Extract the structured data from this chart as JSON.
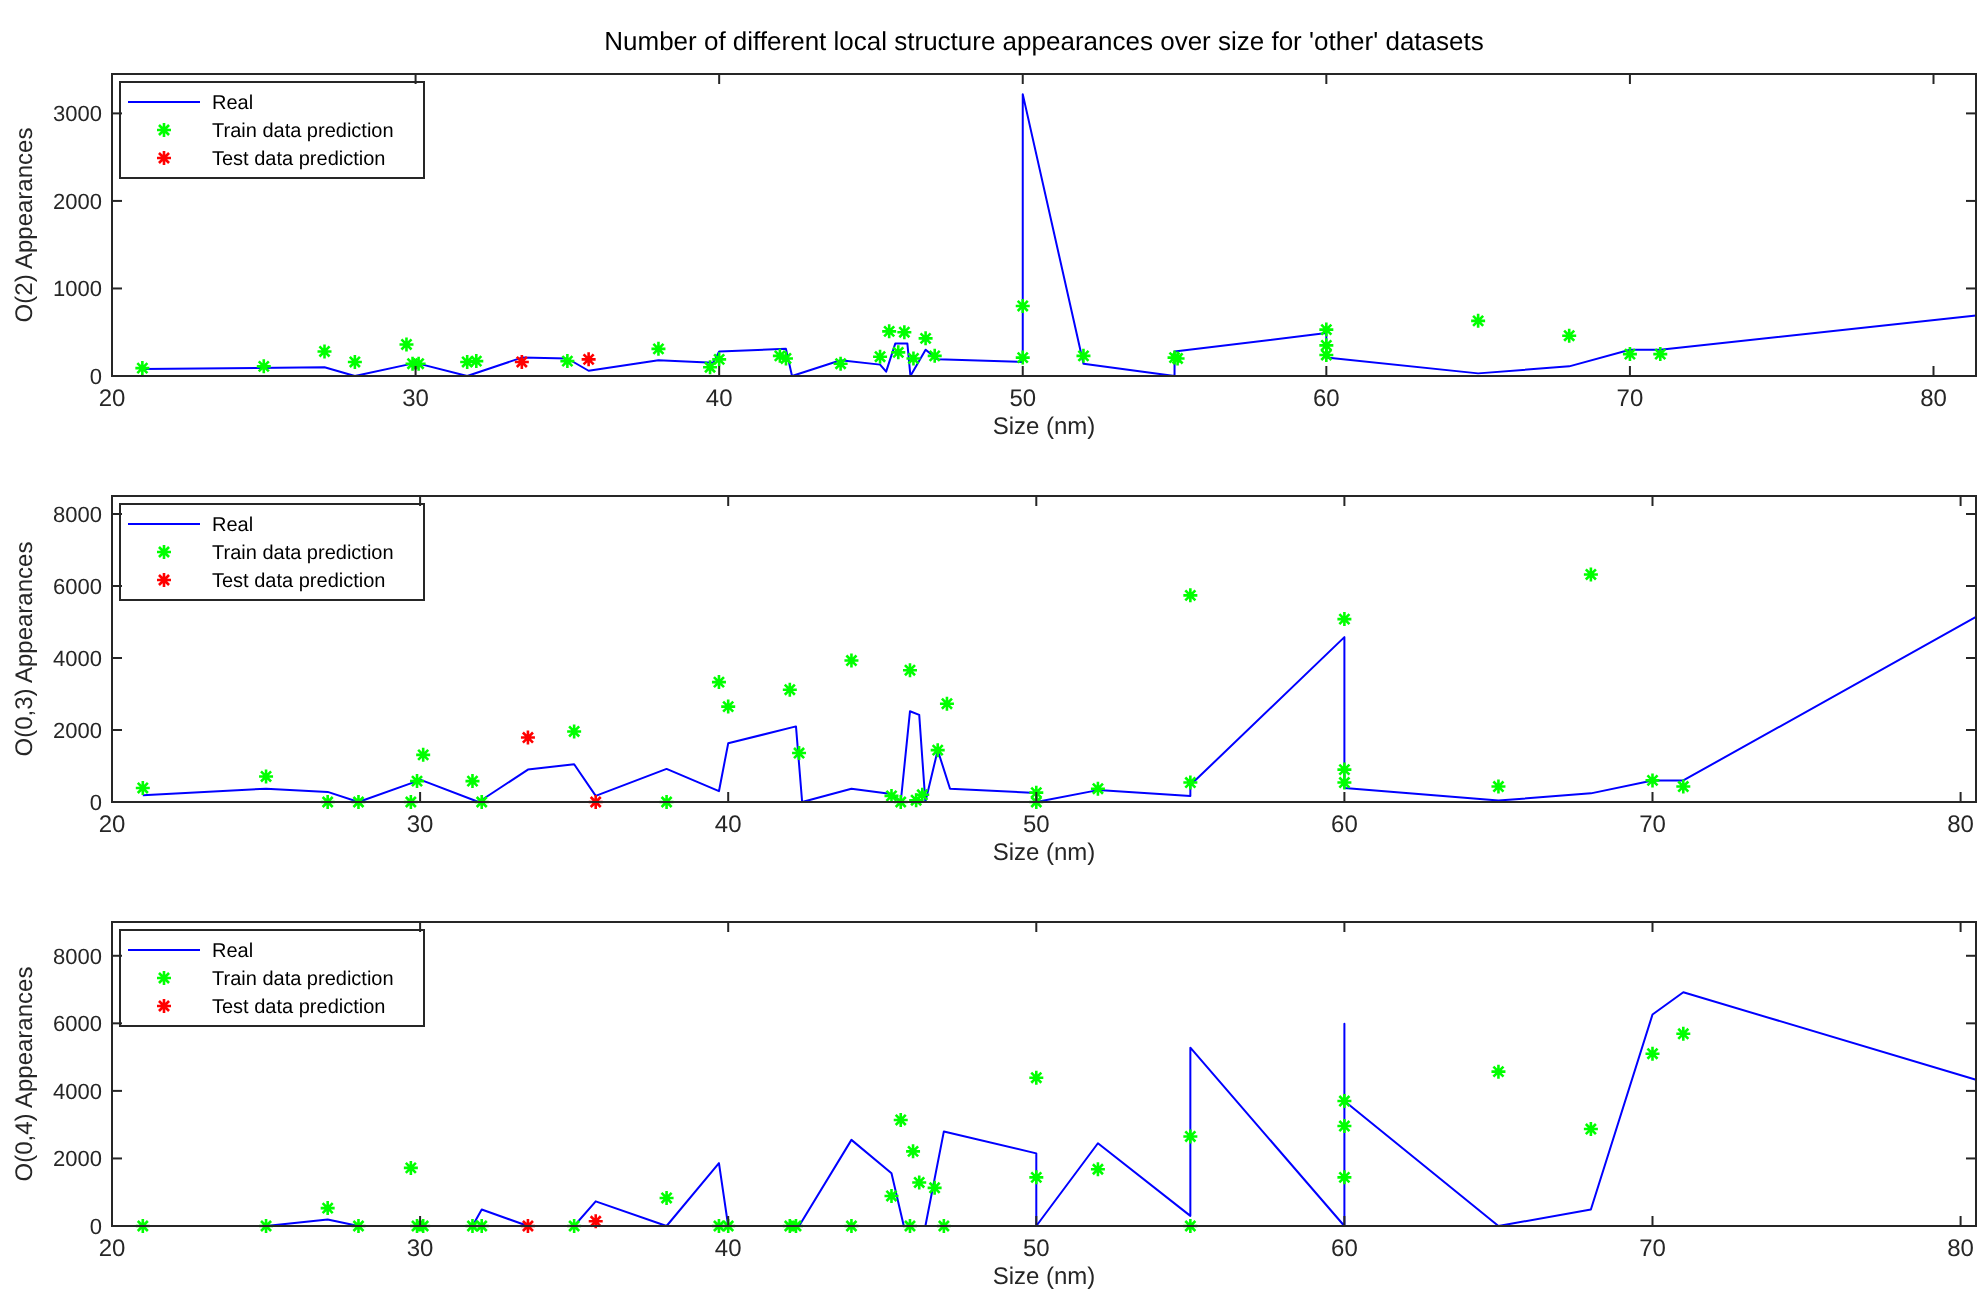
{
  "chart_data": [
    {
      "type": "line",
      "title": "Number of different local structure appearances over size for 'other' datasets",
      "xlabel": "Size (nm)",
      "ylabel": "O(2) Appearances",
      "xlim": [
        20,
        81.4
      ],
      "ylim": [
        0,
        3450
      ],
      "xticks": [
        20,
        30,
        40,
        50,
        60,
        70,
        80
      ],
      "yticks": [
        0,
        1000,
        2000,
        3000
      ],
      "legend": "top left",
      "series": [
        {
          "name": "Real",
          "color": "#0000ff",
          "marker": "none",
          "line_style": "solid",
          "x": [
            21,
            27,
            28,
            30,
            31.7,
            33.5,
            35,
            35.7,
            38,
            39.8,
            40,
            42.2,
            42.4,
            44,
            45.3,
            45.5,
            45.8,
            46.2,
            46.3,
            46.8,
            47.2,
            50,
            50,
            52,
            55,
            55,
            60,
            60,
            65,
            68,
            70,
            71,
            81.4
          ],
          "values": [
            80,
            100,
            0,
            150,
            0,
            210,
            200,
            60,
            180,
            150,
            280,
            310,
            0,
            180,
            130,
            50,
            370,
            370,
            0,
            300,
            190,
            160,
            3220,
            140,
            0,
            280,
            490,
            210,
            30,
            110,
            300,
            300,
            690
          ]
        },
        {
          "name": "Train data prediction",
          "type": "scatter",
          "color": "#00ff00",
          "marker": "cross",
          "x": [
            21,
            25,
            27,
            28,
            29.7,
            29.9,
            30.1,
            31.7,
            32,
            35,
            38,
            39.7,
            40,
            42,
            42.2,
            44,
            45.3,
            45.6,
            45.9,
            46.1,
            46.4,
            46.8,
            47.1,
            50,
            50,
            52,
            55,
            55.1,
            60,
            60,
            60,
            65,
            68,
            70,
            71
          ],
          "values": [
            90,
            110,
            280,
            160,
            360,
            140,
            140,
            160,
            170,
            170,
            310,
            100,
            190,
            230,
            200,
            140,
            220,
            510,
            270,
            500,
            200,
            430,
            230,
            800,
            210,
            230,
            210,
            200,
            530,
            350,
            240,
            630,
            460,
            250,
            250
          ]
        },
        {
          "name": "Test data prediction",
          "type": "scatter",
          "color": "#ff0000",
          "marker": "cross",
          "x": [
            33.5,
            35.7
          ],
          "values": [
            160,
            190
          ]
        }
      ]
    },
    {
      "type": "line",
      "xlabel": "Size (nm)",
      "ylabel": "O(0,3) Appearances",
      "xlim": [
        20,
        80.5
      ],
      "ylim": [
        0,
        8500
      ],
      "xticks": [
        20,
        30,
        40,
        50,
        60,
        70,
        80
      ],
      "yticks": [
        0,
        2000,
        4000,
        6000,
        8000
      ],
      "legend": "top left",
      "series": [
        {
          "name": "Real",
          "color": "#0000ff",
          "marker": "none",
          "line_style": "solid",
          "x": [
            21,
            25,
            27,
            28,
            29.9,
            30,
            31.9,
            33.5,
            35,
            35.7,
            38,
            39.7,
            40,
            42.2,
            42.4,
            44,
            45.3,
            45.6,
            45.9,
            46.2,
            46.4,
            46.8,
            47.2,
            50,
            50,
            52,
            55,
            55,
            60,
            60,
            65,
            68,
            70,
            71,
            80.5
          ],
          "values": [
            190,
            370,
            280,
            0,
            580,
            620,
            0,
            900,
            1050,
            170,
            920,
            300,
            1630,
            2100,
            0,
            370,
            220,
            0,
            2520,
            2420,
            0,
            1440,
            370,
            250,
            0,
            330,
            170,
            470,
            4580,
            390,
            40,
            240,
            600,
            600,
            5140
          ]
        },
        {
          "name": "Train data prediction",
          "type": "scatter",
          "color": "#00ff00",
          "marker": "cross",
          "x": [
            21,
            25,
            27,
            28,
            29.7,
            29.9,
            30.1,
            31.7,
            32,
            35,
            38,
            39.7,
            40,
            42,
            42.3,
            44,
            45.3,
            45.6,
            45.9,
            46.1,
            46.3,
            46.8,
            47.1,
            50,
            50,
            52,
            55,
            55,
            60,
            60,
            60,
            65,
            68,
            70,
            71
          ],
          "values": [
            390,
            710,
            0,
            0,
            0,
            580,
            1310,
            580,
            0,
            1960,
            0,
            3330,
            2650,
            3120,
            1360,
            3930,
            170,
            0,
            3660,
            50,
            200,
            1440,
            2730,
            260,
            0,
            370,
            540,
            5740,
            5080,
            900,
            540,
            430,
            6320,
            600,
            430
          ]
        },
        {
          "name": "Test data prediction",
          "type": "scatter",
          "color": "#ff0000",
          "marker": "cross",
          "x": [
            33.5,
            35.7
          ],
          "values": [
            1790,
            0
          ]
        }
      ]
    },
    {
      "type": "line",
      "xlabel": "Size (nm)",
      "ylabel": "O(0,4) Appearances",
      "xlim": [
        20,
        80.5
      ],
      "ylim": [
        0,
        9000
      ],
      "xticks": [
        20,
        30,
        40,
        50,
        60,
        70,
        80
      ],
      "yticks": [
        0,
        2000,
        4000,
        6000,
        8000
      ],
      "legend": "top left",
      "series": [
        {
          "name": "Real",
          "color": "#0000ff",
          "marker": "none",
          "line_style": "solid",
          "x": [
            25,
            27,
            28,
            31.7,
            32,
            33.5,
            35,
            35.7,
            38,
            39.7,
            40,
            42.3,
            44,
            45.3,
            45.7,
            46.4,
            47,
            50,
            50,
            52,
            55,
            55,
            60,
            60,
            60,
            65,
            68,
            70,
            71,
            80.5
          ],
          "values": [
            0,
            190,
            0,
            0,
            490,
            0,
            0,
            730,
            0,
            1860,
            0,
            0,
            2550,
            1560,
            0,
            0,
            2800,
            2150,
            0,
            2450,
            300,
            5280,
            0,
            5990,
            3700,
            0,
            490,
            6260,
            6920,
            4330
          ]
        },
        {
          "name": "Train data prediction",
          "type": "scatter",
          "color": "#00ff00",
          "marker": "cross",
          "x": [
            21,
            25,
            27,
            28,
            29.7,
            29.9,
            30.1,
            31.7,
            32,
            35,
            38,
            39.7,
            40,
            42,
            42.2,
            44,
            45.3,
            45.6,
            45.9,
            46,
            46.2,
            46.7,
            47,
            50,
            50,
            52,
            55,
            55,
            60,
            60,
            60,
            65,
            68,
            70,
            71
          ],
          "values": [
            0,
            0,
            530,
            0,
            1720,
            0,
            0,
            0,
            0,
            0,
            830,
            0,
            0,
            0,
            0,
            0,
            890,
            3140,
            0,
            2210,
            1290,
            1130,
            0,
            4390,
            1440,
            1680,
            2650,
            0,
            3700,
            2960,
            1440,
            4570,
            2870,
            5100,
            5690
          ]
        },
        {
          "name": "Test data prediction",
          "type": "scatter",
          "color": "#ff0000",
          "marker": "cross",
          "x": [
            33.5,
            35.7
          ],
          "values": [
            0,
            140
          ]
        }
      ]
    }
  ]
}
